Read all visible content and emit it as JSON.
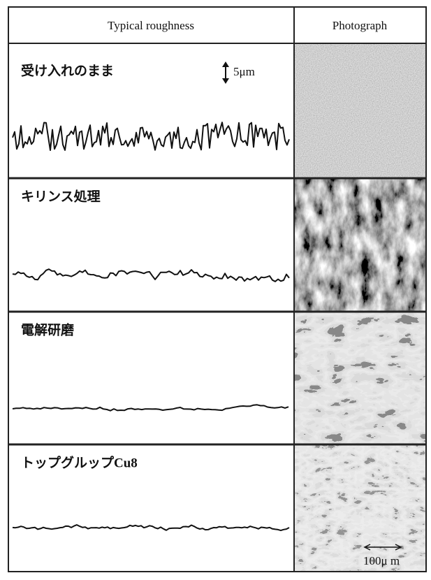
{
  "table": {
    "header": [
      "Typical roughness",
      "Photograph"
    ],
    "rows": [
      {
        "label": "受け入れのまま",
        "scale": "5μm"
      },
      {
        "label": "キリンス処理"
      },
      {
        "label": "電解研磨"
      },
      {
        "label": "トップグルップCu8",
        "scale": "100μ m"
      }
    ]
  }
}
